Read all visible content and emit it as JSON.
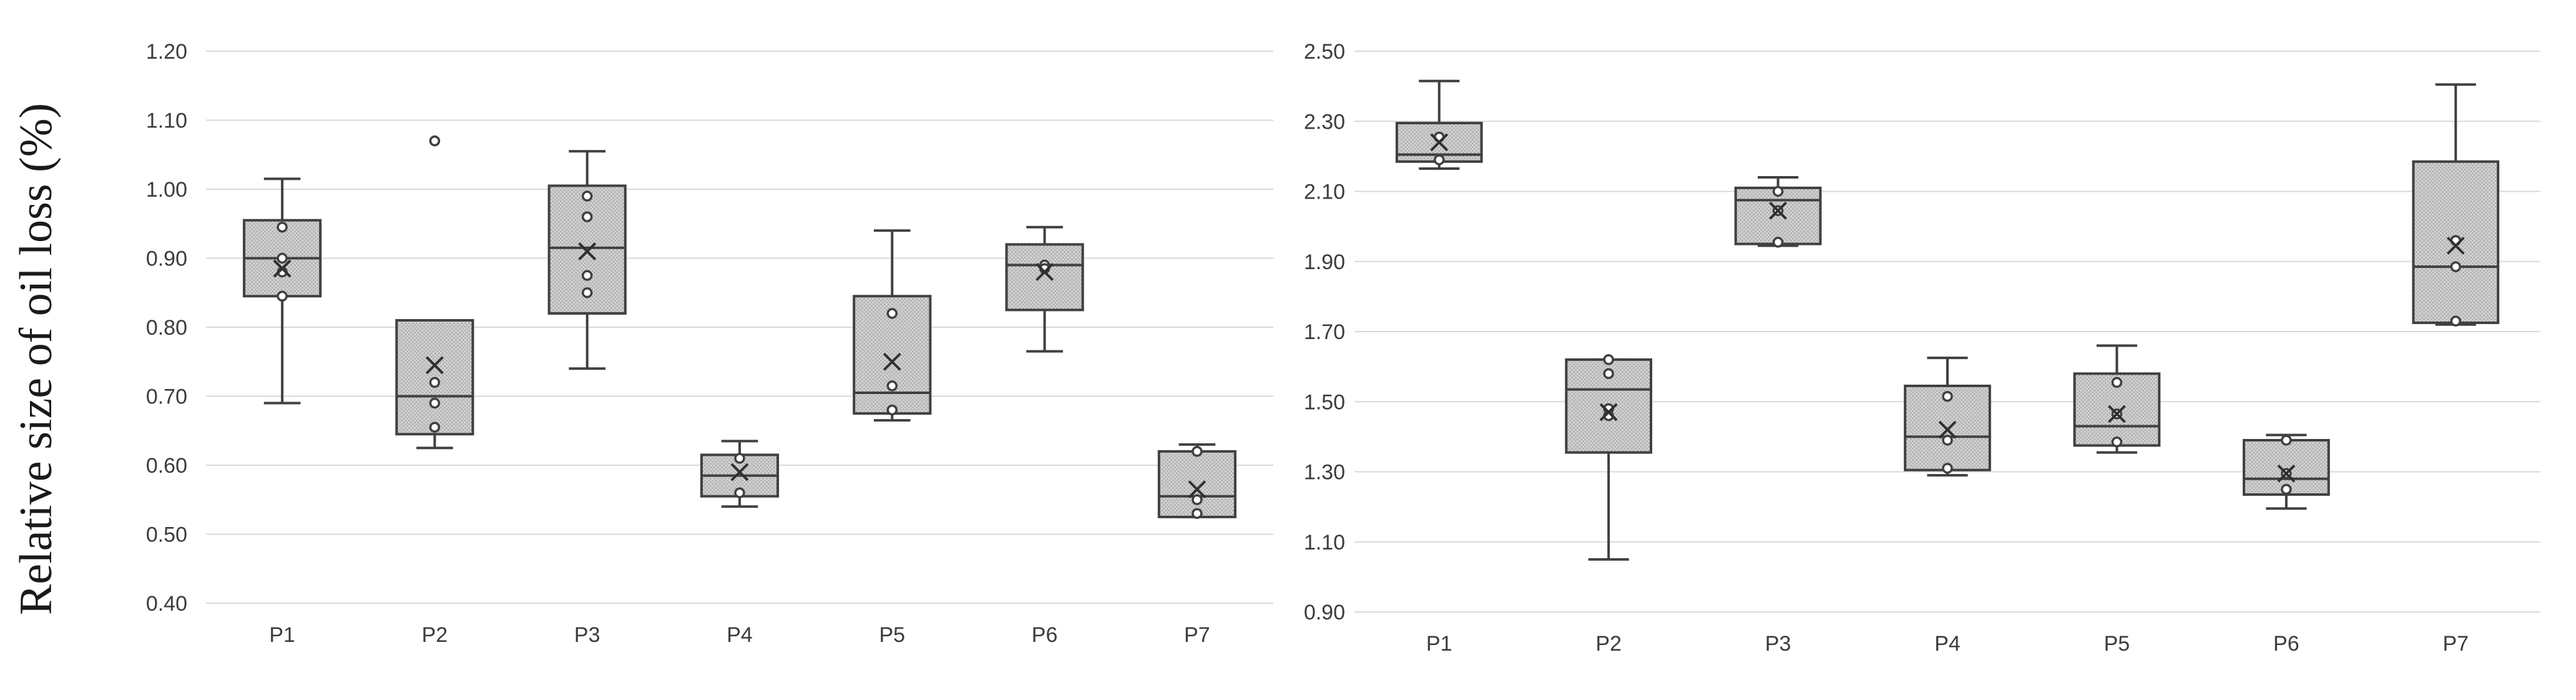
{
  "y_axis_label": "Relative size of oil loss (%)",
  "chart_data": [
    {
      "type": "box",
      "title": "",
      "xlabel": "",
      "ylabel": "Relative size of oil loss (%)",
      "ylim": [
        0.4,
        1.2
      ],
      "yticks": [
        0.4,
        0.5,
        0.6,
        0.7,
        0.8,
        0.9,
        1.0,
        1.1,
        1.2
      ],
      "ytick_labels": [
        "0.40",
        "0.50",
        "0.60",
        "0.70",
        "0.80",
        "0.90",
        "1.00",
        "1.10",
        "1.20"
      ],
      "grid": true,
      "categories": [
        "P1",
        "P2",
        "P3",
        "P4",
        "P5",
        "P6",
        "P7"
      ],
      "boxes": [
        {
          "name": "P1",
          "whisker_low": 0.69,
          "q1": 0.845,
          "median": 0.9,
          "q3": 0.955,
          "whisker_high": 1.015,
          "mean": 0.885,
          "points": [
            0.945,
            0.9,
            0.88,
            0.845
          ]
        },
        {
          "name": "P2",
          "whisker_low": 0.625,
          "q1": 0.645,
          "median": 0.7,
          "q3": 0.81,
          "whisker_high": 0.81,
          "mean": 0.745,
          "points": [
            1.07,
            0.72,
            0.69,
            0.655
          ]
        },
        {
          "name": "P3",
          "whisker_low": 0.74,
          "q1": 0.82,
          "median": 0.915,
          "q3": 1.005,
          "whisker_high": 1.055,
          "mean": 0.91,
          "points": [
            0.99,
            0.96,
            0.875,
            0.85
          ]
        },
        {
          "name": "P4",
          "whisker_low": 0.54,
          "q1": 0.555,
          "median": 0.585,
          "q3": 0.615,
          "whisker_high": 0.635,
          "mean": 0.59,
          "points": [
            0.61,
            0.56
          ]
        },
        {
          "name": "P5",
          "whisker_low": 0.665,
          "q1": 0.675,
          "median": 0.705,
          "q3": 0.845,
          "whisker_high": 0.94,
          "mean": 0.75,
          "points": [
            0.82,
            0.715,
            0.68
          ]
        },
        {
          "name": "P6",
          "whisker_low": 0.765,
          "q1": 0.825,
          "median": 0.89,
          "q3": 0.92,
          "whisker_high": 0.945,
          "mean": 0.88,
          "points": [
            0.89,
            0.885
          ]
        },
        {
          "name": "P7",
          "whisker_low": 0.525,
          "q1": 0.525,
          "median": 0.555,
          "q3": 0.62,
          "whisker_high": 0.63,
          "mean": 0.565,
          "points": [
            0.62,
            0.55,
            0.53
          ]
        }
      ]
    },
    {
      "type": "box",
      "title": "",
      "xlabel": "",
      "ylabel": "",
      "ylim": [
        0.9,
        2.5
      ],
      "yticks": [
        0.9,
        1.1,
        1.3,
        1.5,
        1.7,
        1.9,
        2.1,
        2.3,
        2.5
      ],
      "ytick_labels": [
        "0.90",
        "1.10",
        "1.30",
        "1.50",
        "1.70",
        "1.90",
        "2.10",
        "2.30",
        "2.50"
      ],
      "grid": true,
      "categories": [
        "P1",
        "P2",
        "P3",
        "P4",
        "P5",
        "P6",
        "P7"
      ],
      "boxes": [
        {
          "name": "P1",
          "whisker_low": 2.165,
          "q1": 2.185,
          "median": 2.205,
          "q3": 2.295,
          "whisker_high": 2.415,
          "mean": 2.24,
          "points": [
            2.255,
            2.19
          ]
        },
        {
          "name": "P2",
          "whisker_low": 1.05,
          "q1": 1.355,
          "median": 1.535,
          "q3": 1.62,
          "whisker_high": 1.62,
          "mean": 1.47,
          "points": [
            1.62,
            1.58,
            1.48,
            1.46
          ]
        },
        {
          "name": "P3",
          "whisker_low": 1.945,
          "q1": 1.95,
          "median": 2.075,
          "q3": 2.11,
          "whisker_high": 2.14,
          "mean": 2.045,
          "points": [
            2.1,
            2.045,
            1.955
          ]
        },
        {
          "name": "P4",
          "whisker_low": 1.29,
          "q1": 1.305,
          "median": 1.4,
          "q3": 1.545,
          "whisker_high": 1.625,
          "mean": 1.42,
          "points": [
            1.515,
            1.39,
            1.31
          ]
        },
        {
          "name": "P5",
          "whisker_low": 1.355,
          "q1": 1.375,
          "median": 1.43,
          "q3": 1.58,
          "whisker_high": 1.66,
          "mean": 1.465,
          "points": [
            1.555,
            1.465,
            1.385
          ]
        },
        {
          "name": "P6",
          "whisker_low": 1.195,
          "q1": 1.235,
          "median": 1.28,
          "q3": 1.39,
          "whisker_high": 1.405,
          "mean": 1.295,
          "points": [
            1.39,
            1.295,
            1.25
          ]
        },
        {
          "name": "P7",
          "whisker_low": 1.72,
          "q1": 1.725,
          "median": 1.885,
          "q3": 2.185,
          "whisker_high": 2.405,
          "mean": 1.945,
          "points": [
            1.96,
            1.885,
            1.73
          ]
        }
      ]
    }
  ]
}
